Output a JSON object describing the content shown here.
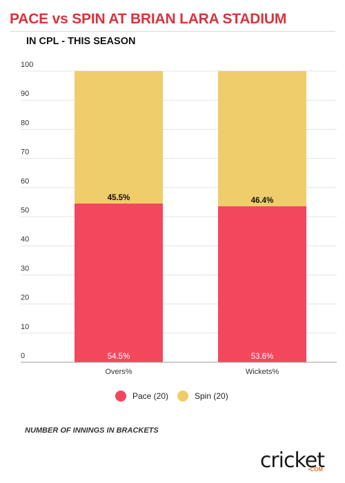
{
  "chart_data": {
    "type": "bar",
    "stacked": true,
    "title": "PACE vs SPIN AT BRIAN LARA STADIUM",
    "subtitle": "IN CPL - THIS SEASON",
    "categories": [
      "Overs%",
      "Wickets%"
    ],
    "series": [
      {
        "name": "Pace (20)",
        "color": "#f2475d",
        "values": [
          54.5,
          53.6
        ],
        "labels": [
          "54.5%",
          "53.6%"
        ]
      },
      {
        "name": "Spin (20)",
        "color": "#f0cd6b",
        "values": [
          45.5,
          46.4
        ],
        "labels": [
          "45.5%",
          "46.4%"
        ]
      }
    ],
    "ylim": [
      0,
      100
    ],
    "yticks": [
      0,
      10,
      20,
      30,
      40,
      50,
      60,
      70,
      80,
      90,
      100
    ],
    "grid": true,
    "legend": "bottom-center"
  },
  "footnote": "NUMBER OF INNINGS IN BRACKETS",
  "logo": {
    "text": "cricket",
    "sub": "•COM"
  }
}
